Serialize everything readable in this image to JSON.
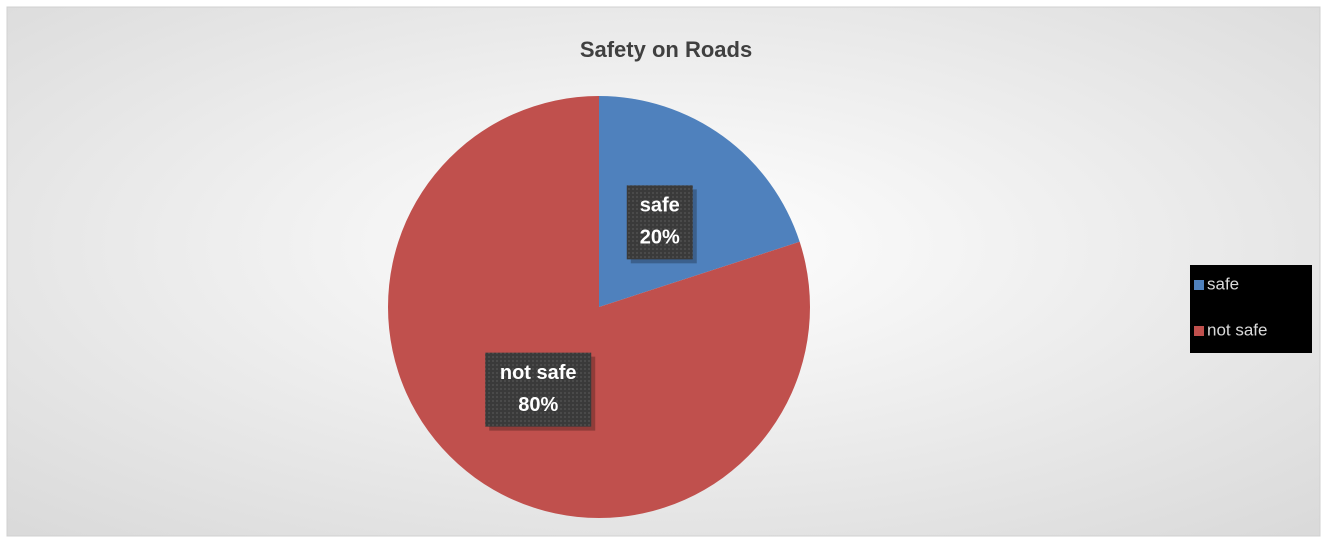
{
  "chart_data": {
    "type": "pie",
    "title": "Safety on Roads",
    "categories": [
      "safe",
      "not safe"
    ],
    "values": [
      20,
      80
    ],
    "value_labels": [
      "20%",
      "80%"
    ],
    "colors": [
      "#4f81bd",
      "#c0504d"
    ],
    "legend": "right"
  }
}
